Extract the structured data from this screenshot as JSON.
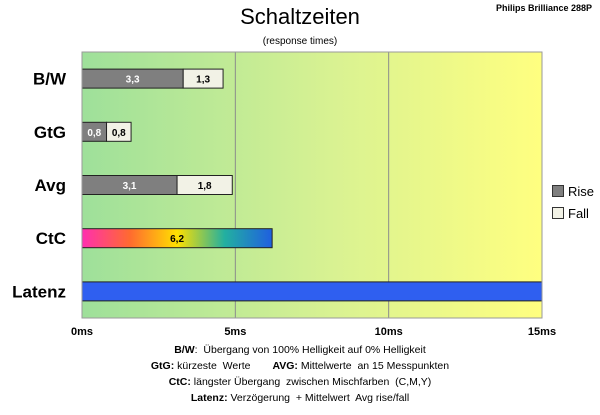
{
  "header": {
    "title": "Schaltzeiten",
    "subtitle": "(response times)",
    "brand": "Philips Brilliance  288P"
  },
  "legend": [
    {
      "name": "Rise",
      "color": "#7f7f7f"
    },
    {
      "name": "Fall",
      "color": "#f2f2e6"
    }
  ],
  "notes": {
    "line1_key": "B/W",
    "line1_text": ":  Übergang von 100% Helligkeit auf 0% Helligkeit",
    "line2a_key": "GtG:",
    "line2a_text": " kürzeste  Werte",
    "line2b_key": "AVG:",
    "line2b_text": " Mittelwerte  an 15 Messpunkten",
    "line3_key": "CtC:",
    "line3_text": " längster Übergang  zwischen Mischfarben  (C,M,Y)",
    "line4_key": "Latenz:",
    "line4_text": " Verzögerung  + Mittelwert  Avg rise/fall"
  },
  "chart_data": {
    "type": "bar",
    "orientation": "horizontal",
    "stacked": true,
    "categories": [
      "B/W",
      "GtG",
      "Avg",
      "CtC",
      "Latenz"
    ],
    "series": [
      {
        "name": "Rise",
        "color": "#7f7f7f",
        "values": [
          3.3,
          0.8,
          3.1,
          null,
          null
        ]
      },
      {
        "name": "Fall",
        "color": "#f2f2e6",
        "values": [
          1.3,
          0.8,
          1.8,
          null,
          null
        ]
      }
    ],
    "single_bars": [
      {
        "category": "CtC",
        "value": 6.2,
        "label": "6,2",
        "fill": "rainbow"
      },
      {
        "category": "Latenz",
        "value": 15,
        "label": "",
        "fill": "#2f5ff0"
      }
    ],
    "value_labels": {
      "B/W": [
        "3,3",
        "1,3"
      ],
      "GtG": [
        "0,8",
        "0,8"
      ],
      "Avg": [
        "3,1",
        "1,8"
      ]
    },
    "xticks": [
      {
        "value": 0,
        "label": "0ms"
      },
      {
        "value": 5,
        "label": "5ms"
      },
      {
        "value": 10,
        "label": "10ms"
      },
      {
        "value": 15,
        "label": "15ms"
      }
    ],
    "xlim": [
      0,
      15
    ],
    "grid": true,
    "background_gradient": [
      "#9ee09a",
      "#d9f292",
      "#ffff80"
    ],
    "legend_position": "right"
  }
}
